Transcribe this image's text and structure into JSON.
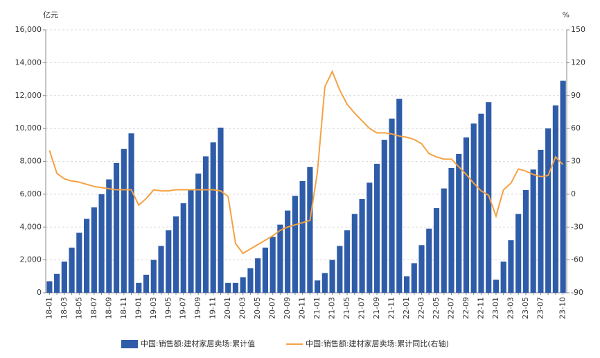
{
  "chart_data": {
    "type": "bar_line",
    "y_unit": "亿元",
    "y2_unit": "%",
    "categories": [
      "18-01",
      null,
      "18-03",
      null,
      "18-05",
      null,
      "18-07",
      null,
      "18-09",
      null,
      "18-11",
      null,
      "19-01",
      null,
      "19-03",
      null,
      "19-05",
      null,
      "19-07",
      null,
      "19-09",
      null,
      "19-11",
      null,
      "20-01",
      null,
      "20-03",
      null,
      "20-05",
      null,
      "20-07",
      null,
      "20-09",
      null,
      "20-11",
      null,
      "21-01",
      null,
      "21-03",
      null,
      "21-05",
      null,
      "21-07",
      null,
      "21-09",
      null,
      "21-11",
      null,
      "22-01",
      null,
      "22-03",
      null,
      "22-05",
      null,
      "22-07",
      null,
      "22-09",
      null,
      "22-11",
      null,
      "23-01",
      null,
      "23-03",
      null,
      "23-05",
      null,
      "23-07",
      null,
      null,
      "23-10"
    ],
    "series": [
      {
        "name": "中国:销售额:建材家居卖场:累计值",
        "type": "bar",
        "color": "#2f5ca8",
        "axis": "y",
        "values": [
          700,
          1150,
          1900,
          2750,
          3650,
          4500,
          5200,
          6000,
          6900,
          7900,
          8750,
          9700,
          600,
          1100,
          2000,
          2850,
          3800,
          4650,
          5450,
          6300,
          7250,
          8300,
          9150,
          10050,
          600,
          600,
          950,
          1500,
          2100,
          2750,
          3400,
          4150,
          5000,
          5900,
          6800,
          7650,
          750,
          1200,
          2000,
          2850,
          3800,
          4800,
          5700,
          6700,
          7850,
          9300,
          10600,
          11800,
          1000,
          1800,
          2900,
          3900,
          5150,
          6350,
          7600,
          8450,
          9450,
          10300,
          10900,
          11600,
          800,
          1900,
          3200,
          4800,
          6250,
          7500,
          8700,
          10000,
          11400,
          12900
        ]
      },
      {
        "name": "中国:销售额:建材家居卖场:累计同比(右轴)",
        "type": "line",
        "color": "#f5a142",
        "axis": "y2",
        "values": [
          40,
          19,
          14,
          12,
          11,
          9,
          7,
          6,
          5,
          4,
          4,
          4,
          -10,
          -4,
          4,
          3,
          3,
          4,
          4,
          4,
          4,
          4,
          4,
          3,
          -2,
          -45,
          -54,
          -50,
          -46,
          -42,
          -38,
          -33,
          -30,
          -28,
          -26,
          -24,
          20,
          98,
          112,
          95,
          82,
          74,
          67,
          60,
          56,
          56,
          55,
          53,
          52,
          50,
          46,
          37,
          34,
          32,
          32,
          25,
          18,
          10,
          3,
          -1,
          -20,
          4,
          10,
          23,
          21,
          18,
          16,
          17,
          34,
          27
        ]
      }
    ],
    "ylim": [
      0,
      16000
    ],
    "yticks": [
      0,
      {
        "value": 2000,
        "label": "2,000"
      },
      {
        "value": 4000,
        "label": "4,000"
      },
      {
        "value": 6000,
        "label": "6,000"
      },
      {
        "value": 8000,
        "label": "8,000"
      },
      {
        "value": 10000,
        "label": "10,000"
      },
      {
        "value": 12000,
        "label": "12,000"
      },
      {
        "value": 14000,
        "label": "14,000"
      },
      {
        "value": 16000,
        "label": "16,000"
      }
    ],
    "y2lim": [
      -90,
      150
    ],
    "y2ticks": [
      -90,
      -60,
      -30,
      0,
      30,
      60,
      90,
      120,
      150
    ],
    "grid": true,
    "legend": "bottom"
  }
}
